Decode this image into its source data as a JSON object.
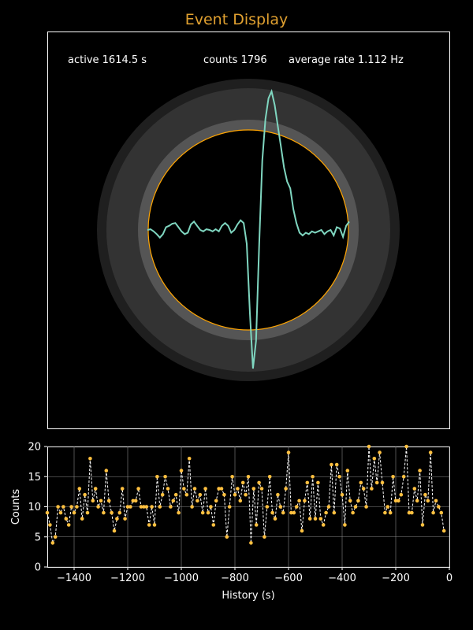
{
  "title": "Event Display",
  "stats": {
    "active": "active 1614.5 s",
    "counts": "counts 1796",
    "rate": "average rate 1.112 Hz"
  },
  "colors": {
    "background": "#000000",
    "title": "#e0a030",
    "ring_outer": "#1f1f1f",
    "ring_mid": "#333333",
    "ring_inner": "#555555",
    "detector_edge": "#ffa500",
    "waveform": "#7fd6c0",
    "history_points": "#ffc040",
    "history_line": "#ffffff"
  },
  "event_display": {
    "waveform_samples": [
      0.0,
      0.005,
      -0.01,
      -0.03,
      -0.055,
      -0.03,
      0.02,
      0.03,
      0.045,
      0.05,
      0.02,
      -0.01,
      -0.03,
      -0.02,
      0.04,
      0.06,
      0.03,
      0.0,
      -0.01,
      0.005,
      0.0,
      -0.01,
      0.005,
      -0.01,
      0.03,
      0.05,
      0.03,
      -0.02,
      0.0,
      0.04,
      0.07,
      0.05,
      -0.1,
      -0.6,
      -1.0,
      -0.8,
      -0.1,
      0.5,
      0.8,
      0.95,
      1.0,
      0.9,
      0.75,
      0.6,
      0.45,
      0.35,
      0.3,
      0.15,
      0.05,
      -0.02,
      -0.04,
      -0.02,
      -0.03,
      -0.01,
      -0.02,
      -0.01,
      0.0,
      -0.03,
      -0.01,
      0.0,
      -0.04,
      0.02,
      0.01,
      -0.05,
      0.03,
      0.06
    ]
  },
  "chart_data": {
    "type": "line",
    "xlabel": "History (s)",
    "ylabel": "Counts",
    "xlim": [
      -1500,
      0
    ],
    "ylim": [
      0,
      20
    ],
    "xticks": [
      -1400,
      -1200,
      -1000,
      -800,
      -600,
      -400,
      -200,
      0
    ],
    "yticks": [
      0,
      5,
      10,
      15,
      20
    ],
    "grid": true,
    "x_step": 10,
    "x_start": -1500,
    "values": [
      9,
      7,
      4,
      5,
      10,
      9,
      10,
      8,
      7,
      10,
      9,
      10,
      13,
      8,
      12,
      9,
      18,
      11,
      13,
      10,
      11,
      9,
      16,
      11,
      9,
      6,
      8,
      9,
      13,
      8,
      10,
      10,
      11,
      11,
      13,
      10,
      10,
      10,
      7,
      10,
      7,
      15,
      10,
      12,
      15,
      13,
      10,
      11,
      12,
      9,
      16,
      13,
      12,
      18,
      10,
      13,
      11,
      12,
      9,
      13,
      9,
      10,
      7,
      11,
      13,
      13,
      12,
      5,
      10,
      15,
      12,
      13,
      11,
      14,
      12,
      15,
      4,
      13,
      7,
      14,
      13,
      5,
      10,
      15,
      9,
      8,
      12,
      10,
      9,
      13,
      19,
      9,
      9,
      10,
      11,
      6,
      11,
      14,
      8,
      15,
      8,
      14,
      8,
      7,
      9,
      10,
      17,
      9,
      17,
      15,
      12,
      7,
      16,
      11,
      9,
      10,
      11,
      14,
      13,
      10,
      20,
      13,
      18,
      14,
      19,
      14,
      9,
      10,
      9,
      15,
      11,
      11,
      12,
      15,
      20,
      9,
      9,
      13,
      11,
      16,
      7,
      12,
      11,
      19,
      9,
      11,
      10,
      9,
      6
    ]
  }
}
